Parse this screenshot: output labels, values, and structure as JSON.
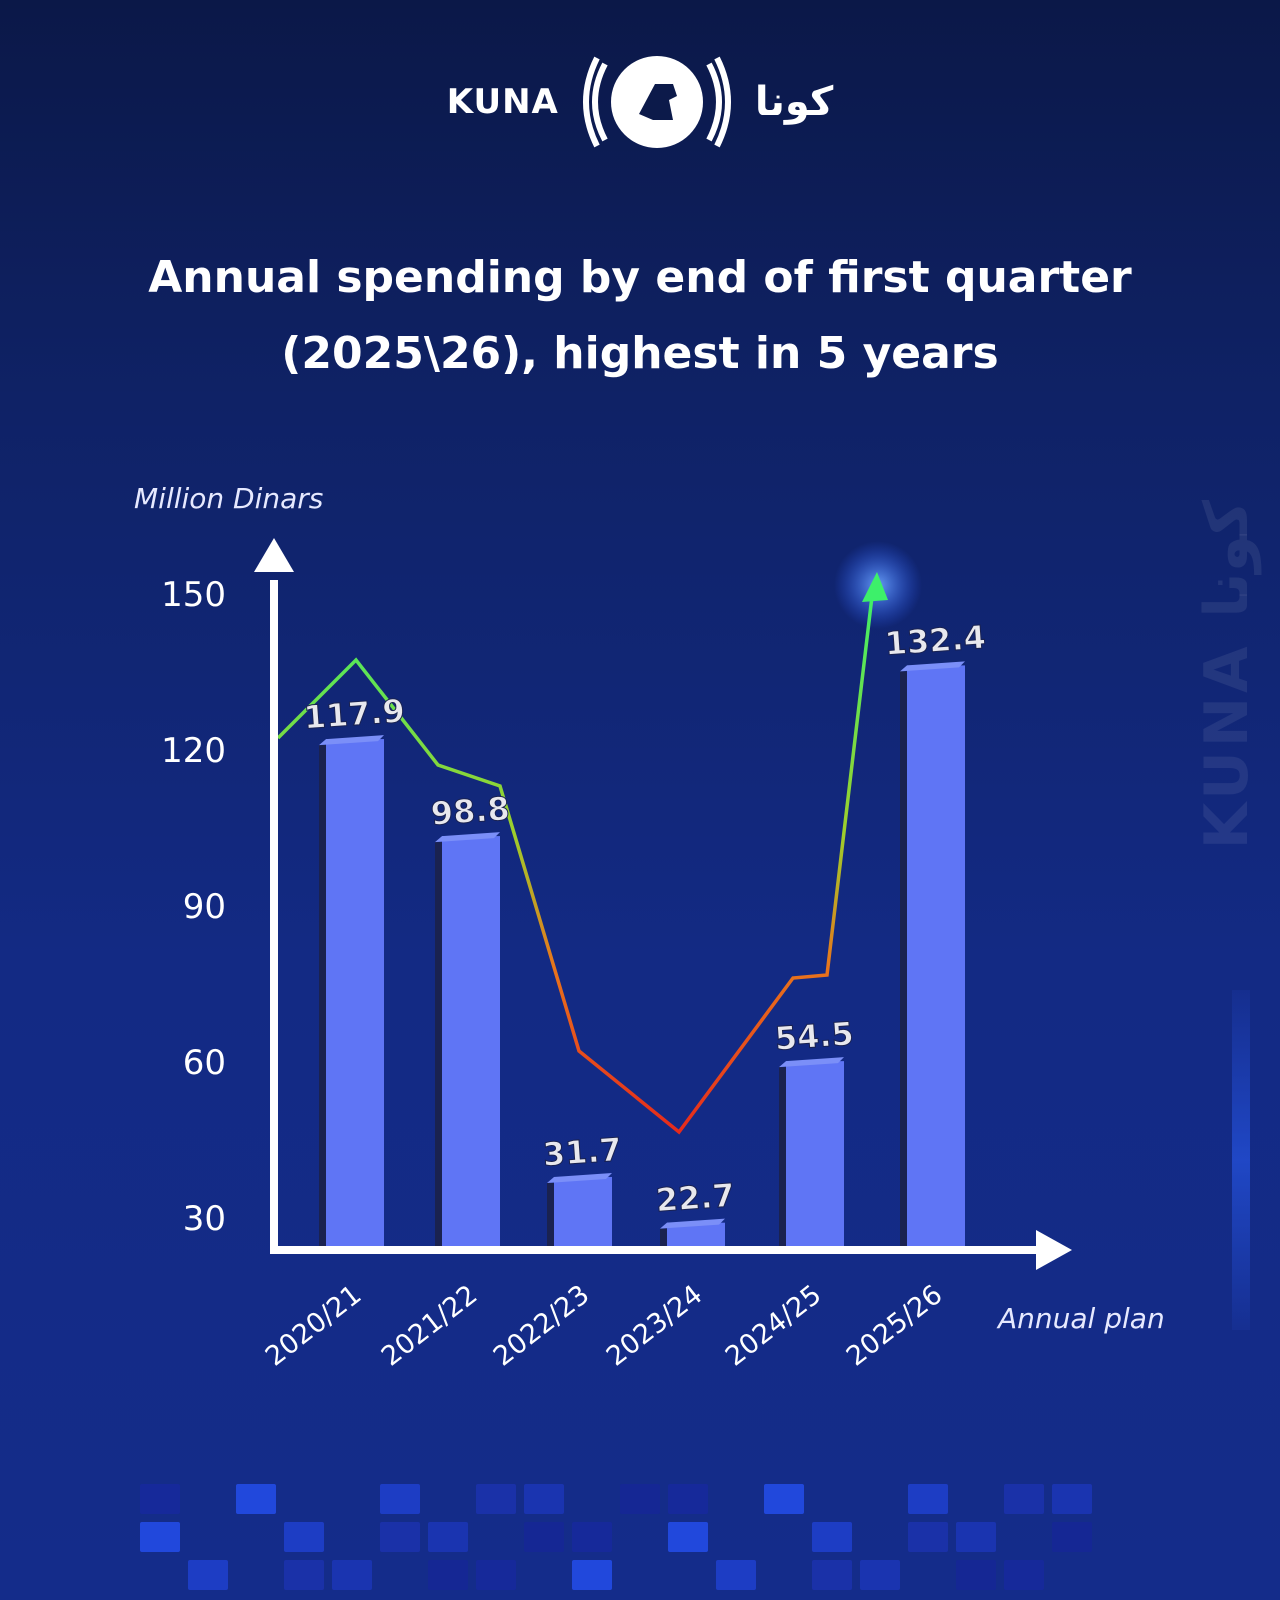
{
  "logo": {
    "latin": "KUNA",
    "arabic": "كونا"
  },
  "title": {
    "line1": "Annual spending by end of first quarter",
    "line2": "(2025\\26), highest in 5 years"
  },
  "watermark": "KUNA كونا",
  "colors": {
    "bar": "#5f75f5",
    "bar_shadow": "#1a2250",
    "axis": "#ffffff",
    "trend_high": "#3df06a",
    "trend_low": "#e62a1c",
    "background": "#132a84"
  },
  "chart_data": {
    "type": "bar",
    "title": "Annual spending by end of first quarter (2025\\26), highest in 5 years",
    "xlabel": "Annual plan",
    "ylabel": "Million Dinars",
    "categories": [
      "2020/21",
      "2021/22",
      "2022/23",
      "2023/24",
      "2024/25",
      "2025/26"
    ],
    "values": [
      117.9,
      98.8,
      31.7,
      22.7,
      54.5,
      132.4
    ],
    "data_labels": [
      "117.9",
      "98.8",
      "31.7",
      "22.7",
      "54.5",
      "132.4"
    ],
    "yticks": [
      30,
      60,
      90,
      120,
      150
    ],
    "ylim": [
      0,
      150
    ],
    "grid": false,
    "legend": "none",
    "trend_arrow": "decorative line with upward arrow after 2025/26"
  }
}
